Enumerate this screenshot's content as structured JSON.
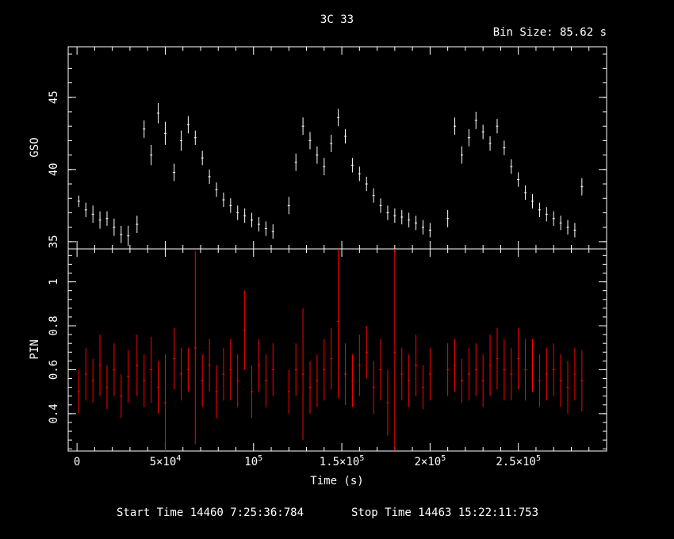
{
  "title": "3C 33",
  "bin_size": "Bin Size: 85.62 s",
  "footer": {
    "start": "Start Time 14460  7:25:36:784",
    "stop": "Stop Time 14463 15:22:11:753"
  },
  "colors": {
    "gso": "#ffffff",
    "pin": "#ff0000",
    "background": "#000000",
    "axes": "#ffffff"
  },
  "chart_data": [
    {
      "type": "scatter",
      "name": "GSO",
      "ylabel": "GSO",
      "xlabel": "",
      "xlim": [
        -5000,
        300000
      ],
      "ylim": [
        34.5,
        48.5
      ],
      "y_ticks": [
        35,
        40,
        45
      ],
      "y_tick_labels": [
        "35",
        "40",
        "45"
      ],
      "series": [
        {
          "x": [
            1000,
            5000,
            9000,
            13000,
            17000,
            21000,
            25000,
            29000,
            34000,
            38000,
            42000,
            46000,
            50000,
            55000,
            59000,
            63000,
            67000,
            71000,
            75000,
            79000,
            83000,
            87000,
            91000,
            95000,
            99000,
            103000,
            107000,
            111000,
            120000,
            124000,
            128000,
            132000,
            136000,
            140000,
            144000,
            148000,
            152000,
            156000,
            160000,
            164000,
            168000,
            172000,
            176000,
            180000,
            184000,
            188000,
            192000,
            196000,
            200000,
            210000,
            214000,
            218000,
            222000,
            226000,
            230000,
            234000,
            238000,
            242000,
            246000,
            250000,
            254000,
            258000,
            262000,
            266000,
            270000,
            274000,
            278000,
            282000,
            286000
          ],
          "y": [
            37.8,
            37.2,
            36.9,
            36.5,
            36.6,
            36.0,
            35.5,
            35.4,
            36.2,
            42.8,
            41.0,
            43.9,
            42.5,
            39.8,
            42.0,
            43.1,
            42.2,
            40.8,
            39.5,
            38.6,
            37.9,
            37.5,
            37.0,
            36.8,
            36.5,
            36.2,
            35.9,
            35.7,
            37.5,
            40.5,
            43.0,
            42.0,
            41.0,
            40.2,
            41.8,
            43.6,
            42.3,
            40.3,
            39.7,
            39.0,
            38.2,
            37.5,
            37.0,
            36.8,
            36.7,
            36.5,
            36.3,
            36.0,
            35.8,
            36.6,
            43.0,
            41.0,
            42.2,
            43.4,
            42.6,
            41.8,
            43.0,
            41.5,
            40.2,
            39.3,
            38.4,
            37.8,
            37.2,
            36.9,
            36.6,
            36.3,
            36.0,
            35.8,
            38.8
          ],
          "yerr": [
            0.4,
            0.5,
            0.6,
            0.6,
            0.5,
            0.6,
            0.6,
            0.7,
            0.6,
            0.6,
            0.7,
            0.7,
            0.8,
            0.6,
            0.7,
            0.6,
            0.5,
            0.5,
            0.5,
            0.5,
            0.5,
            0.5,
            0.5,
            0.5,
            0.5,
            0.5,
            0.5,
            0.5,
            0.6,
            0.6,
            0.6,
            0.6,
            0.6,
            0.6,
            0.6,
            0.6,
            0.5,
            0.5,
            0.5,
            0.5,
            0.5,
            0.5,
            0.5,
            0.5,
            0.5,
            0.5,
            0.5,
            0.5,
            0.5,
            0.6,
            0.6,
            0.6,
            0.6,
            0.6,
            0.5,
            0.5,
            0.5,
            0.5,
            0.5,
            0.5,
            0.5,
            0.5,
            0.5,
            0.5,
            0.5,
            0.5,
            0.5,
            0.5,
            0.6
          ]
        }
      ]
    },
    {
      "type": "scatter",
      "name": "PIN",
      "ylabel": "PIN",
      "xlabel": "Time (s)",
      "xlim": [
        -5000,
        300000
      ],
      "ylim": [
        0.23,
        1.15
      ],
      "y_ticks": [
        0.4,
        0.6,
        0.8,
        1.0
      ],
      "y_tick_labels": [
        "0.4",
        "0.6",
        "0.8",
        "1"
      ],
      "x_ticks": [
        0,
        50000,
        100000,
        150000,
        200000,
        250000
      ],
      "x_tick_labels": [
        {
          "base": "0",
          "exp": ""
        },
        {
          "base": "5×10",
          "exp": "4"
        },
        {
          "base": "10",
          "exp": "5"
        },
        {
          "base": "1.5×10",
          "exp": "5"
        },
        {
          "base": "2×10",
          "exp": "5"
        },
        {
          "base": "2.5×10",
          "exp": "5"
        }
      ],
      "series": [
        {
          "x": [
            1000,
            5000,
            9000,
            13000,
            17000,
            21000,
            25000,
            29000,
            34000,
            38000,
            42000,
            46000,
            50000,
            55000,
            59000,
            63000,
            67000,
            71000,
            75000,
            79000,
            83000,
            87000,
            91000,
            95000,
            99000,
            103000,
            107000,
            111000,
            120000,
            124000,
            128000,
            132000,
            136000,
            140000,
            144000,
            148000,
            152000,
            156000,
            160000,
            164000,
            168000,
            172000,
            176000,
            180000,
            184000,
            188000,
            192000,
            196000,
            200000,
            210000,
            214000,
            218000,
            222000,
            226000,
            230000,
            234000,
            238000,
            242000,
            246000,
            250000,
            254000,
            258000,
            262000,
            266000,
            270000,
            274000,
            278000,
            282000,
            286000
          ],
          "y": [
            0.5,
            0.58,
            0.55,
            0.62,
            0.52,
            0.6,
            0.48,
            0.57,
            0.62,
            0.55,
            0.6,
            0.52,
            0.45,
            0.65,
            0.58,
            0.6,
            0.7,
            0.55,
            0.62,
            0.5,
            0.58,
            0.6,
            0.55,
            0.78,
            0.5,
            0.62,
            0.55,
            0.6,
            0.5,
            0.6,
            0.58,
            0.52,
            0.55,
            0.6,
            0.65,
            0.82,
            0.58,
            0.55,
            0.62,
            0.68,
            0.52,
            0.6,
            0.45,
            0.68,
            0.58,
            0.55,
            0.62,
            0.52,
            0.58,
            0.6,
            0.62,
            0.55,
            0.58,
            0.6,
            0.55,
            0.62,
            0.65,
            0.6,
            0.58,
            0.65,
            0.6,
            0.62,
            0.55,
            0.58,
            0.6,
            0.55,
            0.52,
            0.58,
            0.55
          ],
          "yerr": [
            0.1,
            0.12,
            0.1,
            0.14,
            0.1,
            0.12,
            0.1,
            0.12,
            0.14,
            0.12,
            0.15,
            0.12,
            0.22,
            0.14,
            0.12,
            0.1,
            0.44,
            0.12,
            0.12,
            0.12,
            0.12,
            0.14,
            0.12,
            0.18,
            0.12,
            0.12,
            0.12,
            0.12,
            0.1,
            0.12,
            0.3,
            0.12,
            0.12,
            0.14,
            0.14,
            0.35,
            0.14,
            0.12,
            0.14,
            0.12,
            0.12,
            0.14,
            0.15,
            0.5,
            0.12,
            0.12,
            0.14,
            0.1,
            0.12,
            0.12,
            0.12,
            0.1,
            0.12,
            0.12,
            0.12,
            0.14,
            0.14,
            0.14,
            0.12,
            0.14,
            0.14,
            0.12,
            0.12,
            0.12,
            0.12,
            0.12,
            0.12,
            0.12,
            0.14
          ]
        }
      ]
    }
  ]
}
